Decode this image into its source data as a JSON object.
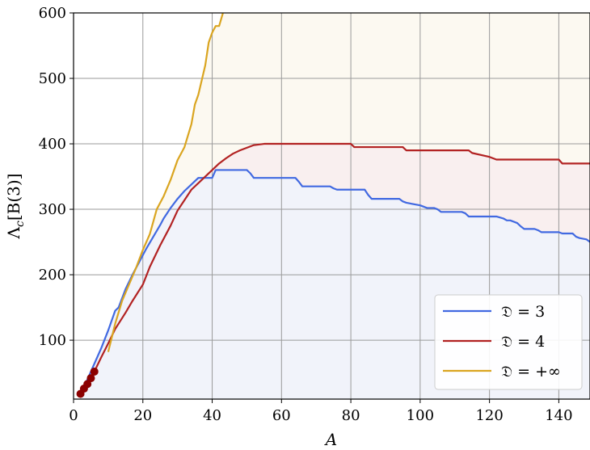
{
  "chart_data": {
    "type": "line",
    "title": "",
    "xlabel": "A",
    "ylabel": "Λ_c[B(3)]",
    "xlim": [
      0,
      149
    ],
    "ylim": [
      10,
      600
    ],
    "xticks": [
      "0",
      "20",
      "40",
      "60",
      "80",
      "100",
      "120",
      "140"
    ],
    "xtick_values": [
      0,
      20,
      40,
      60,
      80,
      100,
      120,
      140
    ],
    "yticks": [
      "100",
      "200",
      "300",
      "400",
      "500",
      "600"
    ],
    "ytick_values": [
      100,
      200,
      300,
      400,
      500,
      600
    ],
    "grid": true,
    "legend_position": "lower-right",
    "series": [
      {
        "name": "𝔇 = 3",
        "color": "#4169E1",
        "fill": "#F1F3FA",
        "x": [
          2,
          4,
          6,
          8,
          10,
          12,
          13,
          15,
          17,
          19,
          21,
          23,
          25,
          26,
          28,
          30,
          31,
          32,
          34,
          36,
          38,
          40,
          41,
          50,
          51,
          52,
          64,
          65,
          66,
          74,
          75,
          76,
          84,
          85,
          86,
          94,
          95,
          96,
          100,
          101,
          102,
          104,
          105,
          106,
          112,
          113,
          114,
          120,
          121,
          122,
          124,
          125,
          126,
          128,
          129,
          130,
          133,
          134,
          135,
          140,
          141,
          142,
          144,
          145,
          146,
          148,
          149
        ],
        "y": [
          18,
          40,
          64,
          88,
          115,
          145,
          150,
          178,
          200,
          220,
          240,
          258,
          276,
          286,
          302,
          316,
          322,
          328,
          338,
          348,
          348,
          348,
          360,
          360,
          355,
          348,
          348,
          342,
          335,
          335,
          332,
          330,
          330,
          322,
          316,
          316,
          312,
          310,
          306,
          304,
          302,
          302,
          300,
          296,
          296,
          294,
          289,
          289,
          289,
          289,
          286,
          283,
          283,
          279,
          274,
          270,
          270,
          268,
          265,
          265,
          263,
          263,
          263,
          258,
          256,
          254,
          250
        ]
      },
      {
        "name": "𝔇 = 4",
        "color": "#B22222",
        "fill": "#F9EFEF",
        "x": [
          2,
          4,
          6,
          8,
          10,
          12,
          15,
          17,
          20,
          22,
          25,
          28,
          30,
          32,
          34,
          36,
          38,
          40,
          42,
          44,
          46,
          48,
          50,
          52,
          55,
          60,
          70,
          80,
          81,
          95,
          96,
          110,
          114,
          115,
          120,
          121,
          122,
          140,
          141,
          149
        ],
        "y": [
          18,
          36,
          52,
          74,
          95,
          117,
          142,
          160,
          185,
          212,
          245,
          275,
          298,
          314,
          330,
          340,
          350,
          360,
          370,
          378,
          385,
          390,
          394,
          398,
          400,
          400,
          400,
          400,
          395,
          395,
          390,
          390,
          390,
          386,
          380,
          378,
          376,
          376,
          370,
          370
        ]
      },
      {
        "name": "𝔇 = +∞",
        "color": "#DAA520",
        "fill": "#FCF9F1",
        "x": [
          10,
          12,
          14,
          16,
          18,
          20,
          22,
          24,
          26,
          28,
          30,
          32,
          34,
          35,
          36,
          38,
          39,
          40,
          41,
          42,
          43,
          44
        ],
        "y": [
          82,
          125,
          160,
          185,
          210,
          238,
          262,
          300,
          320,
          345,
          375,
          395,
          430,
          460,
          475,
          520,
          555,
          570,
          580,
          580,
          598,
          625
        ]
      }
    ],
    "markers": {
      "color": "#8B0000",
      "x": [
        2,
        3,
        4,
        5,
        6
      ],
      "y": [
        18,
        26,
        33,
        42,
        52
      ]
    }
  }
}
